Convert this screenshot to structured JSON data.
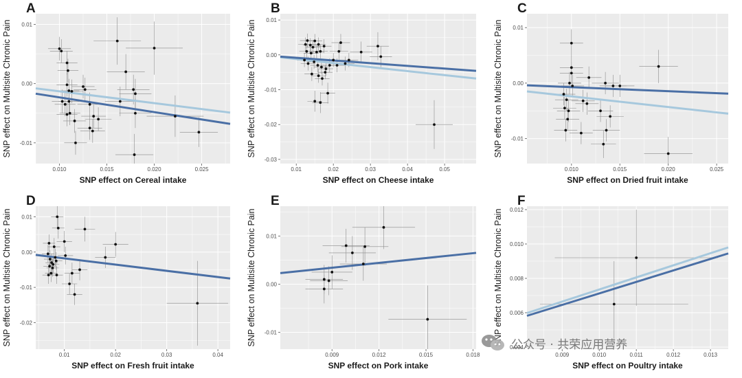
{
  "watermark": {
    "text": "公众号 · 共荣应用营养",
    "icon": "wechat-icon"
  },
  "colors": {
    "panel_bg": "#ebebeb",
    "grid": "#ffffff",
    "err": "#8a8a8a",
    "point": "#111111",
    "dark_line": "#4a6fa5",
    "light_line": "#a6c8dd"
  },
  "chart_data": [
    {
      "type": "scatter",
      "letter": "A",
      "xlabel": "SNP effect on Cereal intake",
      "ylabel": "SNP effect on Multisite Chronic Pain",
      "xlim": [
        0.0075,
        0.028
      ],
      "ylim": [
        -0.0135,
        0.0118
      ],
      "xticks": [
        0.01,
        0.015,
        0.02,
        0.025
      ],
      "xtick_labels": [
        "0.010",
        "0.015",
        "0.020",
        "0.025"
      ],
      "yticks": [
        -0.01,
        0.0,
        0.01
      ],
      "ytick_labels": [
        "-0.01",
        "0.00",
        "0.01"
      ],
      "points": [
        {
          "x": 0.01,
          "y": 0.0059,
          "xe": 0.0012,
          "ye": 0.002
        },
        {
          "x": 0.0102,
          "y": 0.0055,
          "xe": 0.0012,
          "ye": 0.002
        },
        {
          "x": 0.0108,
          "y": 0.0035,
          "xe": 0.0011,
          "ye": 0.002
        },
        {
          "x": 0.0109,
          "y": 0.0022,
          "xe": 0.0011,
          "ye": 0.002
        },
        {
          "x": 0.0108,
          "y": -0.0002,
          "xe": 0.0011,
          "ye": 0.002
        },
        {
          "x": 0.011,
          "y": -0.0012,
          "xe": 0.0011,
          "ye": 0.002
        },
        {
          "x": 0.0113,
          "y": -0.0013,
          "xe": 0.0012,
          "ye": 0.002
        },
        {
          "x": 0.011,
          "y": -0.003,
          "xe": 0.0011,
          "ye": 0.002
        },
        {
          "x": 0.0106,
          "y": -0.0035,
          "xe": 0.0011,
          "ye": 0.002
        },
        {
          "x": 0.0103,
          "y": -0.003,
          "xe": 0.0011,
          "ye": 0.002
        },
        {
          "x": 0.0108,
          "y": -0.0052,
          "xe": 0.0011,
          "ye": 0.002
        },
        {
          "x": 0.0111,
          "y": -0.005,
          "xe": 0.0011,
          "ye": 0.002
        },
        {
          "x": 0.0116,
          "y": -0.0063,
          "xe": 0.0012,
          "ye": 0.002
        },
        {
          "x": 0.0117,
          "y": -0.01,
          "xe": 0.0012,
          "ye": 0.002
        },
        {
          "x": 0.0125,
          "y": -0.0005,
          "xe": 0.0012,
          "ye": 0.002
        },
        {
          "x": 0.0127,
          "y": -0.001,
          "xe": 0.0012,
          "ye": 0.002
        },
        {
          "x": 0.0132,
          "y": -0.0035,
          "xe": 0.0013,
          "ye": 0.002
        },
        {
          "x": 0.0136,
          "y": -0.0055,
          "xe": 0.0013,
          "ye": 0.002
        },
        {
          "x": 0.0132,
          "y": -0.0075,
          "xe": 0.0013,
          "ye": 0.002
        },
        {
          "x": 0.0135,
          "y": -0.008,
          "xe": 0.0013,
          "ye": 0.002
        },
        {
          "x": 0.0141,
          "y": -0.006,
          "xe": 0.0014,
          "ye": 0.002
        },
        {
          "x": 0.0161,
          "y": 0.0072,
          "xe": 0.0025,
          "ye": 0.004
        },
        {
          "x": 0.017,
          "y": 0.002,
          "xe": 0.002,
          "ye": 0.003
        },
        {
          "x": 0.0164,
          "y": -0.003,
          "xe": 0.0016,
          "ye": 0.0025
        },
        {
          "x": 0.0178,
          "y": -0.001,
          "xe": 0.0017,
          "ye": 0.0025
        },
        {
          "x": 0.018,
          "y": -0.0017,
          "xe": 0.0017,
          "ye": 0.0025
        },
        {
          "x": 0.018,
          "y": -0.005,
          "xe": 0.0017,
          "ye": 0.0025
        },
        {
          "x": 0.0179,
          "y": -0.012,
          "xe": 0.002,
          "ye": 0.0035
        },
        {
          "x": 0.02,
          "y": 0.006,
          "xe": 0.003,
          "ye": 0.0045
        },
        {
          "x": 0.0222,
          "y": -0.0055,
          "xe": 0.003,
          "ye": 0.0035
        },
        {
          "x": 0.0247,
          "y": -0.0082,
          "xe": 0.002,
          "ye": 0.0025
        }
      ],
      "lines": [
        {
          "name": "dark",
          "y1": -0.0017,
          "y2": -0.0068
        },
        {
          "name": "light",
          "y1": -0.0008,
          "y2": -0.0049
        }
      ]
    },
    {
      "type": "scatter",
      "letter": "B",
      "xlabel": "SNP effect on Cheese intake",
      "ylabel": "SNP effect on Multisite Chronic Pain",
      "xlim": [
        0.0057,
        0.0585
      ],
      "ylim": [
        -0.0312,
        0.0118
      ],
      "xticks": [
        0.01,
        0.02,
        0.03,
        0.04,
        0.05
      ],
      "xtick_labels": [
        "0.01",
        "0.02",
        "0.03",
        "0.04",
        "0.05"
      ],
      "yticks": [
        -0.03,
        -0.02,
        -0.01,
        0.0,
        0.01
      ],
      "ytick_labels": [
        "-0.03",
        "-0.02",
        "-0.01",
        "0.00",
        "0.01"
      ],
      "points": [
        {
          "x": 0.0125,
          "y": 0.003,
          "xe": 0.002,
          "ye": 0.002
        },
        {
          "x": 0.013,
          "y": 0.0041,
          "xe": 0.002,
          "ye": 0.002
        },
        {
          "x": 0.0138,
          "y": 0.0028,
          "xe": 0.002,
          "ye": 0.002
        },
        {
          "x": 0.0145,
          "y": 0.0022,
          "xe": 0.002,
          "ye": 0.002
        },
        {
          "x": 0.015,
          "y": 0.004,
          "xe": 0.002,
          "ye": 0.002
        },
        {
          "x": 0.016,
          "y": 0.003,
          "xe": 0.002,
          "ye": 0.002
        },
        {
          "x": 0.0175,
          "y": 0.0025,
          "xe": 0.002,
          "ye": 0.002
        },
        {
          "x": 0.0128,
          "y": 0.001,
          "xe": 0.002,
          "ye": 0.002
        },
        {
          "x": 0.014,
          "y": 0.0005,
          "xe": 0.002,
          "ye": 0.002
        },
        {
          "x": 0.0155,
          "y": 0.0008,
          "xe": 0.002,
          "ye": 0.002
        },
        {
          "x": 0.0165,
          "y": 0.001,
          "xe": 0.002,
          "ye": 0.002
        },
        {
          "x": 0.0122,
          "y": -0.0015,
          "xe": 0.002,
          "ye": 0.002
        },
        {
          "x": 0.0132,
          "y": -0.0025,
          "xe": 0.002,
          "ye": 0.002
        },
        {
          "x": 0.0148,
          "y": -0.002,
          "xe": 0.002,
          "ye": 0.002
        },
        {
          "x": 0.0158,
          "y": -0.003,
          "xe": 0.002,
          "ye": 0.002
        },
        {
          "x": 0.0168,
          "y": -0.0035,
          "xe": 0.002,
          "ye": 0.002
        },
        {
          "x": 0.018,
          "y": -0.004,
          "xe": 0.002,
          "ye": 0.002
        },
        {
          "x": 0.019,
          "y": -0.003,
          "xe": 0.002,
          "ye": 0.002
        },
        {
          "x": 0.0142,
          "y": -0.0055,
          "xe": 0.002,
          "ye": 0.002
        },
        {
          "x": 0.016,
          "y": -0.006,
          "xe": 0.002,
          "ye": 0.002
        },
        {
          "x": 0.017,
          "y": -0.0068,
          "xe": 0.002,
          "ye": 0.002
        },
        {
          "x": 0.0178,
          "y": -0.005,
          "xe": 0.002,
          "ye": 0.002
        },
        {
          "x": 0.02,
          "y": -0.0015,
          "xe": 0.0022,
          "ye": 0.002
        },
        {
          "x": 0.021,
          "y": -0.003,
          "xe": 0.0022,
          "ye": 0.002
        },
        {
          "x": 0.0215,
          "y": 0.001,
          "xe": 0.0025,
          "ye": 0.0025
        },
        {
          "x": 0.022,
          "y": 0.0035,
          "xe": 0.0025,
          "ye": 0.0025
        },
        {
          "x": 0.0232,
          "y": -0.0025,
          "xe": 0.0025,
          "ye": 0.002
        },
        {
          "x": 0.0242,
          "y": -0.0015,
          "xe": 0.0025,
          "ye": 0.002
        },
        {
          "x": 0.0275,
          "y": 0.0008,
          "xe": 0.003,
          "ye": 0.003
        },
        {
          "x": 0.032,
          "y": 0.0025,
          "xe": 0.003,
          "ye": 0.004
        },
        {
          "x": 0.0328,
          "y": -0.0005,
          "xe": 0.003,
          "ye": 0.003
        },
        {
          "x": 0.015,
          "y": -0.0133,
          "xe": 0.002,
          "ye": 0.003
        },
        {
          "x": 0.0165,
          "y": -0.0137,
          "xe": 0.0022,
          "ye": 0.003
        },
        {
          "x": 0.0185,
          "y": -0.011,
          "xe": 0.002,
          "ye": 0.003
        },
        {
          "x": 0.0472,
          "y": -0.02,
          "xe": 0.005,
          "ye": 0.007
        }
      ],
      "lines": [
        {
          "name": "dark",
          "y1": -0.0005,
          "y2": -0.0046
        },
        {
          "name": "light",
          "y1": -0.0007,
          "y2": -0.0068
        }
      ]
    },
    {
      "type": "scatter",
      "letter": "C",
      "xlabel": "SNP effect on Dried fruit intake",
      "ylabel": "SNP effect on Multisite Chronic Pain",
      "xlim": [
        0.0054,
        0.0262
      ],
      "ylim": [
        -0.0145,
        0.0125
      ],
      "xticks": [
        0.01,
        0.015,
        0.02,
        0.025
      ],
      "xtick_labels": [
        "0.010",
        "0.015",
        "0.020",
        "0.025"
      ],
      "yticks": [
        -0.01,
        0.0,
        0.01
      ],
      "ytick_labels": [
        "-0.01",
        "0.00",
        "0.01"
      ],
      "points": [
        {
          "x": 0.01,
          "y": 0.0072,
          "xe": 0.0012,
          "ye": 0.0025
        },
        {
          "x": 0.01,
          "y": 0.0028,
          "xe": 0.0012,
          "ye": 0.002
        },
        {
          "x": 0.01,
          "y": 0.0018,
          "xe": 0.0012,
          "ye": 0.002
        },
        {
          "x": 0.0098,
          "y": 0.0,
          "xe": 0.0012,
          "ye": 0.002
        },
        {
          "x": 0.0101,
          "y": -0.0005,
          "xe": 0.0012,
          "ye": 0.002
        },
        {
          "x": 0.0092,
          "y": -0.002,
          "xe": 0.0012,
          "ye": 0.002
        },
        {
          "x": 0.0095,
          "y": -0.003,
          "xe": 0.0012,
          "ye": 0.002
        },
        {
          "x": 0.0093,
          "y": -0.0045,
          "xe": 0.0012,
          "ye": 0.002
        },
        {
          "x": 0.0097,
          "y": -0.005,
          "xe": 0.0012,
          "ye": 0.002
        },
        {
          "x": 0.0096,
          "y": -0.0065,
          "xe": 0.0012,
          "ye": 0.002
        },
        {
          "x": 0.0094,
          "y": -0.0085,
          "xe": 0.0012,
          "ye": 0.002
        },
        {
          "x": 0.011,
          "y": -0.009,
          "xe": 0.0012,
          "ye": 0.002
        },
        {
          "x": 0.0112,
          "y": -0.0032,
          "xe": 0.0012,
          "ye": 0.002
        },
        {
          "x": 0.0116,
          "y": -0.0037,
          "xe": 0.0012,
          "ye": 0.002
        },
        {
          "x": 0.0118,
          "y": 0.001,
          "xe": 0.0013,
          "ye": 0.002
        },
        {
          "x": 0.013,
          "y": -0.005,
          "xe": 0.0013,
          "ye": 0.002
        },
        {
          "x": 0.0133,
          "y": -0.011,
          "xe": 0.0013,
          "ye": 0.0025
        },
        {
          "x": 0.0135,
          "y": 0.0,
          "xe": 0.0014,
          "ye": 0.002
        },
        {
          "x": 0.0136,
          "y": -0.0085,
          "xe": 0.0014,
          "ye": 0.002
        },
        {
          "x": 0.014,
          "y": -0.006,
          "xe": 0.0014,
          "ye": 0.002
        },
        {
          "x": 0.0143,
          "y": -0.0005,
          "xe": 0.0014,
          "ye": 0.002
        },
        {
          "x": 0.015,
          "y": -0.0005,
          "xe": 0.0015,
          "ye": 0.002
        },
        {
          "x": 0.019,
          "y": 0.003,
          "xe": 0.002,
          "ye": 0.003
        },
        {
          "x": 0.02,
          "y": -0.0127,
          "xe": 0.0025,
          "ye": 0.003
        }
      ],
      "lines": [
        {
          "name": "dark",
          "y1": -0.0004,
          "y2": -0.0019
        },
        {
          "name": "light",
          "y1": -0.0015,
          "y2": -0.0055
        }
      ]
    },
    {
      "type": "scatter",
      "letter": "D",
      "xlabel": "SNP effect on Fresh fruit intake",
      "ylabel": "SNP effect on Multisite Chronic Pain",
      "xlim": [
        0.0044,
        0.0424
      ],
      "ylim": [
        -0.0275,
        0.013
      ],
      "xticks": [
        0.01,
        0.02,
        0.03,
        0.04
      ],
      "xtick_labels": [
        "0.01",
        "0.02",
        "0.03",
        "0.04"
      ],
      "yticks": [
        -0.02,
        -0.01,
        0.0,
        0.01
      ],
      "ytick_labels": [
        "-0.02",
        "-0.01",
        "0.00",
        "0.01"
      ],
      "points": [
        {
          "x": 0.007,
          "y": 0.0025,
          "xe": 0.0012,
          "ye": 0.0025
        },
        {
          "x": 0.0068,
          "y": -0.0005,
          "xe": 0.0012,
          "ye": 0.0025
        },
        {
          "x": 0.0072,
          "y": -0.002,
          "xe": 0.0012,
          "ye": 0.0025
        },
        {
          "x": 0.0075,
          "y": -0.003,
          "xe": 0.0012,
          "ye": 0.0025
        },
        {
          "x": 0.0071,
          "y": -0.004,
          "xe": 0.0012,
          "ye": 0.0025
        },
        {
          "x": 0.0077,
          "y": -0.0045,
          "xe": 0.0012,
          "ye": 0.0025
        },
        {
          "x": 0.0069,
          "y": -0.0065,
          "xe": 0.0012,
          "ye": 0.0025
        },
        {
          "x": 0.0074,
          "y": -0.006,
          "xe": 0.0012,
          "ye": 0.0025
        },
        {
          "x": 0.008,
          "y": 0.0015,
          "xe": 0.0012,
          "ye": 0.0025
        },
        {
          "x": 0.0082,
          "y": -0.0015,
          "xe": 0.0012,
          "ye": 0.0025
        },
        {
          "x": 0.0078,
          "y": -0.0035,
          "xe": 0.0012,
          "ye": 0.0025
        },
        {
          "x": 0.0084,
          "y": -0.0025,
          "xe": 0.0012,
          "ye": 0.0025
        },
        {
          "x": 0.0086,
          "y": 0.01,
          "xe": 0.0012,
          "ye": 0.003
        },
        {
          "x": 0.0088,
          "y": 0.0068,
          "xe": 0.0012,
          "ye": 0.003
        },
        {
          "x": 0.0085,
          "y": -0.0065,
          "xe": 0.0012,
          "ye": 0.0025
        },
        {
          "x": 0.01,
          "y": 0.003,
          "xe": 0.0015,
          "ye": 0.003
        },
        {
          "x": 0.0102,
          "y": -0.001,
          "xe": 0.0015,
          "ye": 0.0025
        },
        {
          "x": 0.011,
          "y": -0.009,
          "xe": 0.0015,
          "ye": 0.003
        },
        {
          "x": 0.0115,
          "y": -0.006,
          "xe": 0.0015,
          "ye": 0.003
        },
        {
          "x": 0.012,
          "y": -0.012,
          "xe": 0.0015,
          "ye": 0.003
        },
        {
          "x": 0.013,
          "y": -0.005,
          "xe": 0.0015,
          "ye": 0.003
        },
        {
          "x": 0.014,
          "y": 0.0065,
          "xe": 0.002,
          "ye": 0.0035
        },
        {
          "x": 0.018,
          "y": -0.0015,
          "xe": 0.002,
          "ye": 0.003
        },
        {
          "x": 0.02,
          "y": 0.0022,
          "xe": 0.0025,
          "ye": 0.0035
        },
        {
          "x": 0.036,
          "y": -0.0145,
          "xe": 0.006,
          "ye": 0.012
        }
      ],
      "lines": [
        {
          "name": "dark",
          "y1": -0.0008,
          "y2": -0.0075
        }
      ]
    },
    {
      "type": "scatter",
      "letter": "E",
      "xlabel": "SNP effect on Pork intake",
      "ylabel": "SNP effect on Multisite Chronic Pain",
      "xlim": [
        0.0057,
        0.0182
      ],
      "ylim": [
        -0.0135,
        0.0162
      ],
      "xticks": [
        0.009,
        0.012,
        0.015,
        0.018
      ],
      "xtick_labels": [
        "0.009",
        "0.012",
        "0.015",
        "0.018"
      ],
      "yticks": [
        -0.01,
        0.0,
        0.01
      ],
      "ytick_labels": [
        "-0.01",
        "0.00",
        "0.01"
      ],
      "points": [
        {
          "x": 0.0085,
          "y": 0.001,
          "xe": 0.0012,
          "ye": 0.003
        },
        {
          "x": 0.0085,
          "y": -0.001,
          "xe": 0.0012,
          "ye": 0.003
        },
        {
          "x": 0.0088,
          "y": 0.0007,
          "xe": 0.0012,
          "ye": 0.003
        },
        {
          "x": 0.009,
          "y": 0.0025,
          "xe": 0.0013,
          "ye": 0.0035
        },
        {
          "x": 0.0099,
          "y": 0.008,
          "xe": 0.0015,
          "ye": 0.0035
        },
        {
          "x": 0.0103,
          "y": 0.0065,
          "xe": 0.0015,
          "ye": 0.0035
        },
        {
          "x": 0.011,
          "y": 0.0042,
          "xe": 0.0015,
          "ye": 0.0035
        },
        {
          "x": 0.0111,
          "y": 0.0078,
          "xe": 0.0015,
          "ye": 0.004
        },
        {
          "x": 0.0123,
          "y": 0.0118,
          "xe": 0.002,
          "ye": 0.0045
        },
        {
          "x": 0.0151,
          "y": -0.0073,
          "xe": 0.0025,
          "ye": 0.007
        }
      ],
      "lines": [
        {
          "name": "dark",
          "y1": 0.0023,
          "y2": 0.0065
        }
      ]
    },
    {
      "type": "scatter",
      "letter": "F",
      "xlabel": "SNP effect on Poultry intake",
      "ylabel": "SNP effect on Multisite Chronic Pain",
      "xlim": [
        0.00805,
        0.01348
      ],
      "ylim": [
        0.00388,
        0.0122
      ],
      "xticks": [
        0.009,
        0.01,
        0.011,
        0.012,
        0.013
      ],
      "xtick_labels": [
        "0.009",
        "0.010",
        "0.011",
        "0.012",
        "0.013"
      ],
      "yticks": [
        0.004,
        0.006,
        0.008,
        0.01,
        0.012
      ],
      "ytick_labels": [
        "0.004",
        "0.006",
        "0.008",
        "0.010",
        "0.012"
      ],
      "points": [
        {
          "x": 0.0104,
          "y": 0.0065,
          "xe": 0.002,
          "ye": 0.0025
        },
        {
          "x": 0.011,
          "y": 0.0092,
          "xe": 0.0022,
          "ye": 0.0028
        }
      ],
      "lines": [
        {
          "name": "dark",
          "y1": 0.00582,
          "y2": 0.00945
        },
        {
          "name": "light",
          "y1": 0.00598,
          "y2": 0.0098
        }
      ]
    }
  ]
}
